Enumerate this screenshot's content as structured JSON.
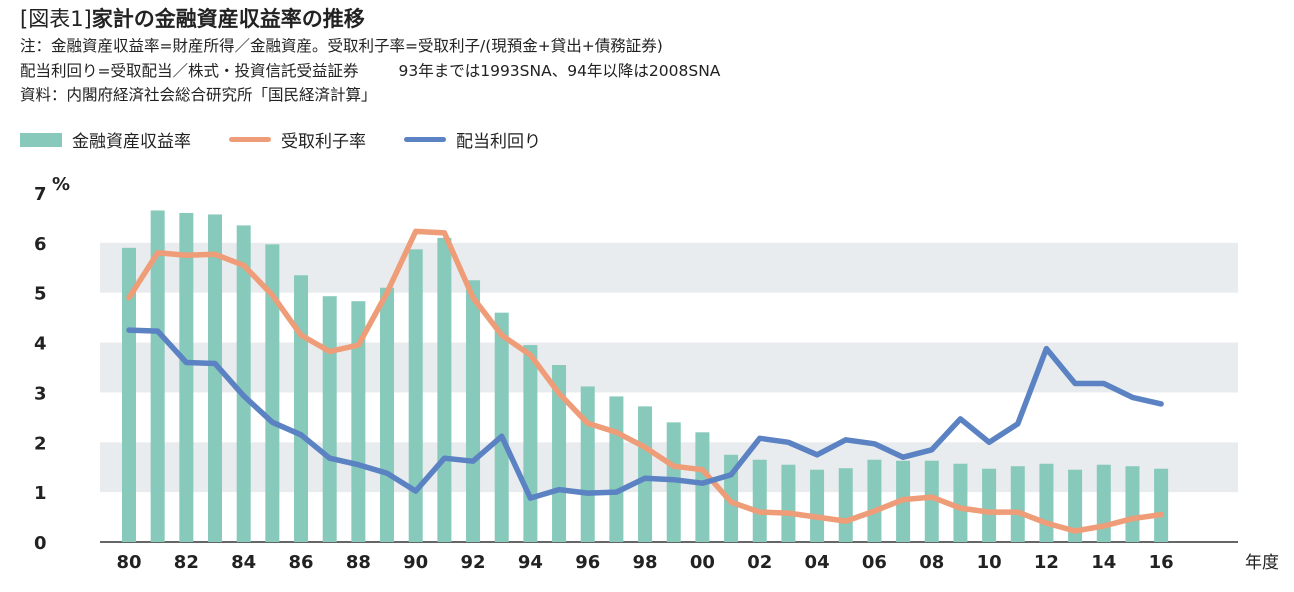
{
  "header": {
    "tag": "[図表1]",
    "title": "家計の金融資産収益率の推移",
    "note_line1": "注：金融資産収益率=財産所得／金融資産。受取利子率=受取利子/(現預金+貸出+債務証券)",
    "note_line2a": "配当利回り=受取配当／株式・投資信託受益証券",
    "note_line2b": "93年までは1993SNA、94年以降は2008SNA",
    "source": "資料：内閣府経済社会総合研究所「国民経済計算」"
  },
  "legend": [
    {
      "name": "金融資産収益率",
      "color": "#87c9bb",
      "kind": "bar"
    },
    {
      "name": "受取利子率",
      "color": "#ee9d78",
      "kind": "line"
    },
    {
      "name": "配当利回り",
      "color": "#5b82c2",
      "kind": "line"
    }
  ],
  "chart_data": {
    "type": "bar",
    "x": [
      1980,
      1981,
      1982,
      1983,
      1984,
      1985,
      1986,
      1987,
      1988,
      1989,
      1990,
      1991,
      1992,
      1993,
      1994,
      1995,
      1996,
      1997,
      1998,
      1999,
      2000,
      2001,
      2002,
      2003,
      2004,
      2005,
      2006,
      2007,
      2008,
      2009,
      2010,
      2011,
      2012,
      2013,
      2014,
      2015,
      2016
    ],
    "x_tick_labels": [
      "80",
      "82",
      "84",
      "86",
      "88",
      "90",
      "92",
      "94",
      "96",
      "98",
      "00",
      "02",
      "04",
      "06",
      "08",
      "10",
      "12",
      "14",
      "16"
    ],
    "x_unit": "年度",
    "y_ticks": [
      "0",
      "1",
      "2",
      "3",
      "4",
      "5",
      "6",
      "7"
    ],
    "y_unit": "%",
    "ylim": [
      0,
      7
    ],
    "grid": "alternating horizontal bands",
    "legend_position": "top-left",
    "series": [
      {
        "name": "金融資産収益率",
        "kind": "bar",
        "color": "#87c9bb",
        "values": [
          5.9,
          6.65,
          6.6,
          6.57,
          6.35,
          5.97,
          5.35,
          4.93,
          4.83,
          5.1,
          5.87,
          6.1,
          5.25,
          4.6,
          3.95,
          3.55,
          3.12,
          2.92,
          2.72,
          2.4,
          2.2,
          1.75,
          1.65,
          1.55,
          1.45,
          1.48,
          1.65,
          1.63,
          1.63,
          1.57,
          1.47,
          1.52,
          1.57,
          1.45,
          1.55,
          1.52,
          1.47
        ]
      },
      {
        "name": "受取利子率",
        "kind": "line",
        "color": "#ee9d78",
        "values": [
          4.9,
          5.8,
          5.75,
          5.77,
          5.55,
          4.95,
          4.15,
          3.82,
          3.95,
          5.0,
          6.23,
          6.2,
          4.9,
          4.15,
          3.75,
          2.98,
          2.38,
          2.2,
          1.9,
          1.52,
          1.45,
          0.8,
          0.6,
          0.58,
          0.5,
          0.42,
          0.62,
          0.85,
          0.9,
          0.68,
          0.6,
          0.6,
          0.38,
          0.22,
          0.32,
          0.47,
          0.55
        ]
      },
      {
        "name": "配当利回り",
        "kind": "line",
        "color": "#5b82c2",
        "values": [
          4.25,
          4.23,
          3.6,
          3.58,
          2.93,
          2.4,
          2.15,
          1.68,
          1.55,
          1.38,
          1.02,
          1.68,
          1.62,
          2.12,
          0.88,
          1.05,
          0.98,
          1.0,
          1.28,
          1.25,
          1.18,
          1.35,
          2.08,
          2.0,
          1.75,
          2.05,
          1.97,
          1.7,
          1.85,
          2.47,
          2.0,
          2.37,
          3.88,
          3.18,
          3.18,
          2.9,
          2.77
        ]
      }
    ]
  }
}
